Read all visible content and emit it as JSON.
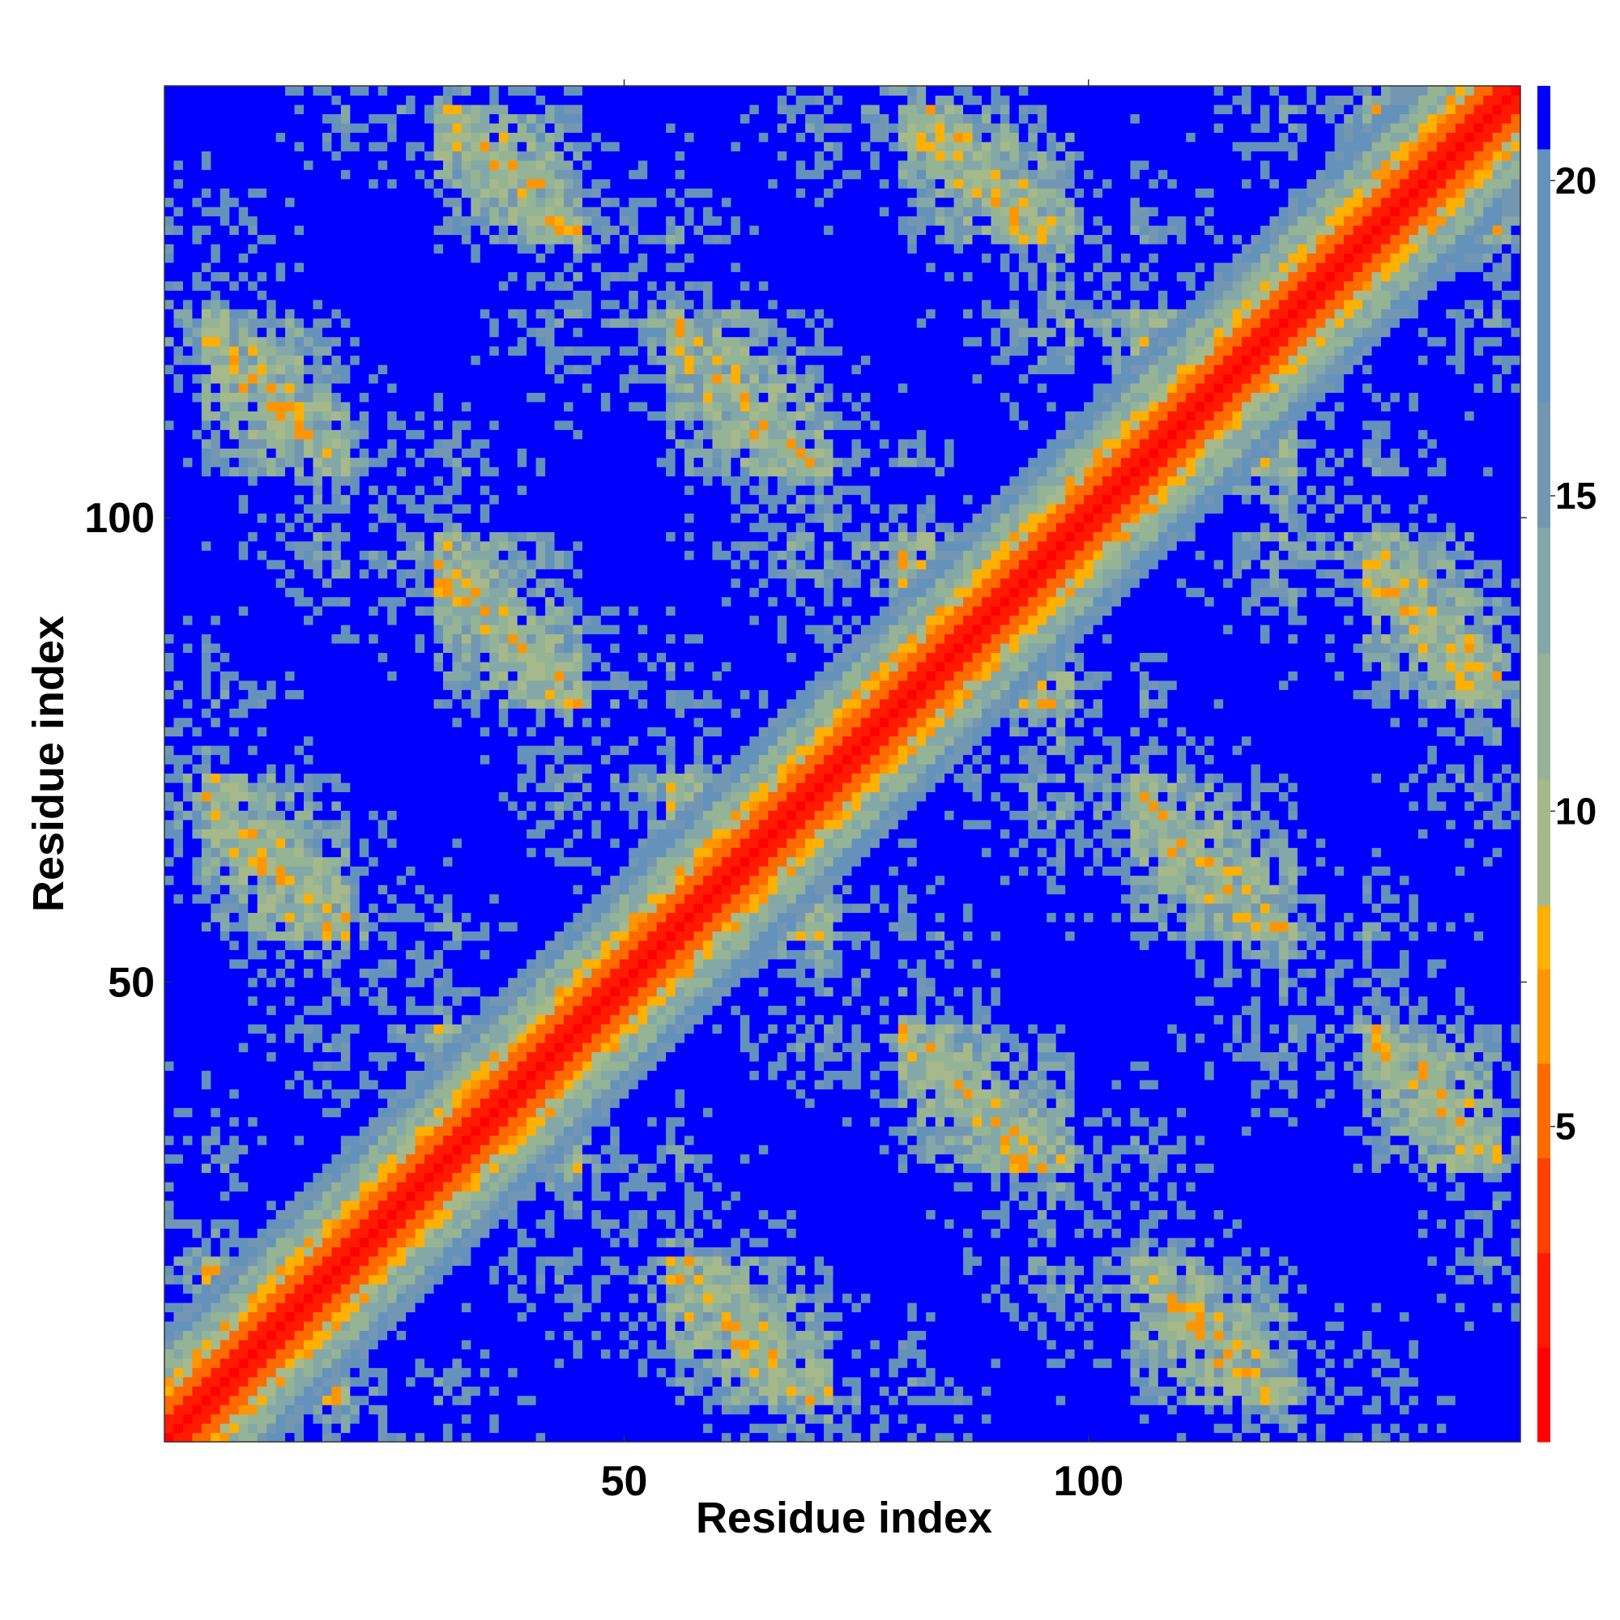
{
  "chart_data": {
    "type": "heatmap",
    "title": "",
    "xlabel": "Residue index",
    "ylabel": "Residue index",
    "residue_count": 146,
    "xlim": [
      1,
      146
    ],
    "ylim": [
      1,
      146
    ],
    "x_ticks": [
      50,
      100
    ],
    "y_ticks": [
      50,
      100
    ],
    "x_tick_labels": [
      "50",
      "100"
    ],
    "y_tick_labels": [
      "50",
      "100"
    ],
    "value_description": "pairwise residue distance (contact map), symmetric about the diagonal",
    "colorbar": {
      "ticks": [
        5,
        10,
        15,
        20
      ],
      "tick_labels": [
        "5",
        "10",
        "15",
        "20"
      ],
      "range": [
        0,
        21.5
      ],
      "levels": [
        {
          "max": 1.5,
          "color": "#ff0000"
        },
        {
          "max": 3.0,
          "color": "#ff1a00"
        },
        {
          "max": 4.5,
          "color": "#ff4000"
        },
        {
          "max": 6.0,
          "color": "#ff6a00"
        },
        {
          "max": 7.5,
          "color": "#ff9500"
        },
        {
          "max": 8.5,
          "color": "#ffb000"
        },
        {
          "max": 10.5,
          "color": "#a6b98b"
        },
        {
          "max": 12.5,
          "color": "#95b495"
        },
        {
          "max": 14.5,
          "color": "#84a8a8"
        },
        {
          "max": 16.5,
          "color": "#7397b2"
        },
        {
          "max": 20.5,
          "color": "#6592bb"
        },
        {
          "max": 21.5,
          "color": "#0000ff"
        }
      ]
    },
    "structure_segments": [
      {
        "start": 5,
        "end": 20
      },
      {
        "start": 30,
        "end": 45
      },
      {
        "start": 55,
        "end": 72
      },
      {
        "start": 80,
        "end": 98
      },
      {
        "start": 105,
        "end": 122
      },
      {
        "start": 130,
        "end": 144
      }
    ],
    "background_color": "#0000ff",
    "grid": false,
    "legend": "colorbar-right"
  }
}
